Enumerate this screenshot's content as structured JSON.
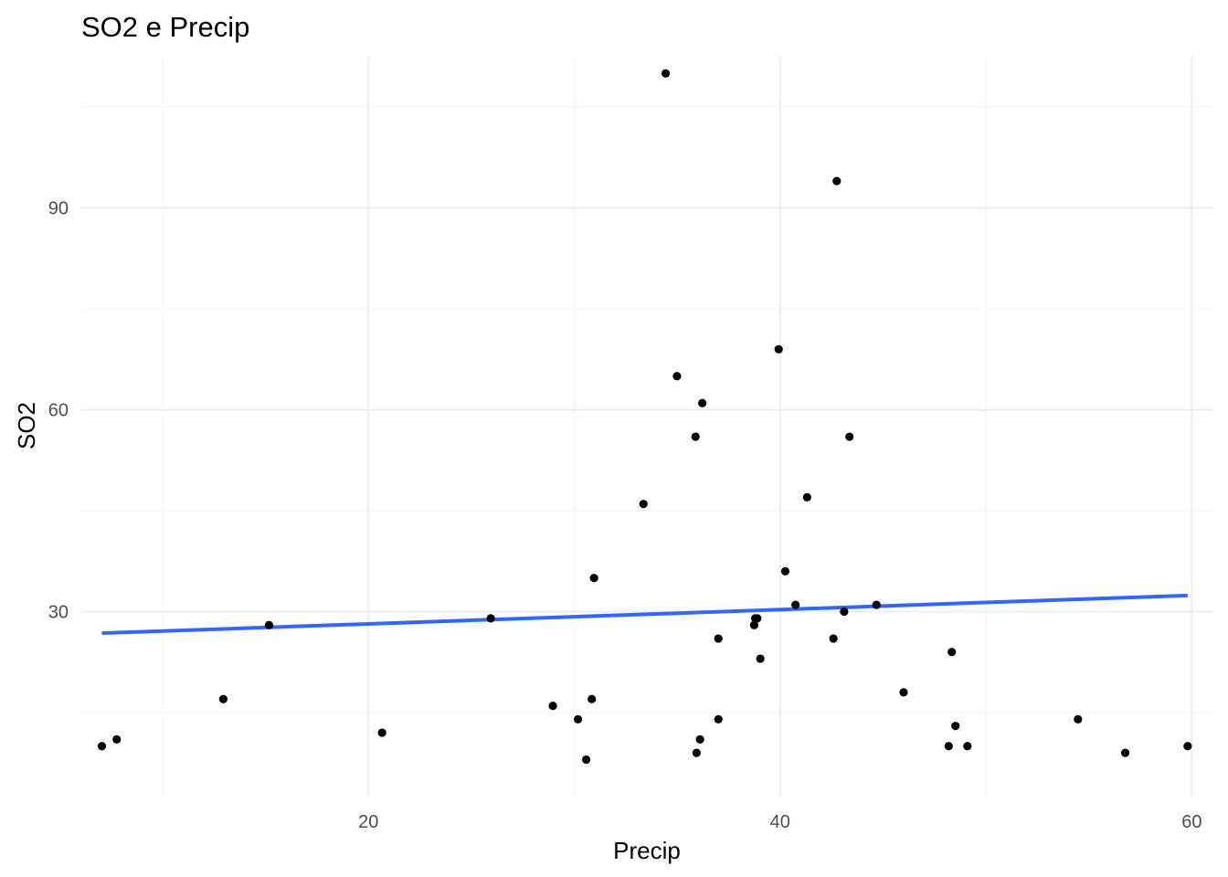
{
  "chart_data": {
    "type": "scatter",
    "title": "SO2 e Precip",
    "xlabel": "Precip",
    "ylabel": "SO2",
    "xlim": [
      6.05,
      61.05
    ],
    "ylim": [
      2.5,
      112.5
    ],
    "x_ticks": [
      20,
      40,
      60
    ],
    "y_ticks": [
      30,
      60,
      90
    ],
    "x_minor_ticks": [
      10,
      30,
      50
    ],
    "y_minor_ticks": [
      15,
      45,
      75,
      105
    ],
    "grid": true,
    "legend": "none",
    "points": [
      {
        "x": 7.05,
        "y": 10
      },
      {
        "x": 7.77,
        "y": 11
      },
      {
        "x": 12.95,
        "y": 17
      },
      {
        "x": 15.17,
        "y": 28
      },
      {
        "x": 20.66,
        "y": 12
      },
      {
        "x": 25.94,
        "y": 29
      },
      {
        "x": 28.96,
        "y": 16
      },
      {
        "x": 30.18,
        "y": 14
      },
      {
        "x": 30.58,
        "y": 8
      },
      {
        "x": 30.85,
        "y": 17
      },
      {
        "x": 30.96,
        "y": 35
      },
      {
        "x": 33.36,
        "y": 46
      },
      {
        "x": 34.44,
        "y": 110
      },
      {
        "x": 34.99,
        "y": 65
      },
      {
        "x": 35.89,
        "y": 56
      },
      {
        "x": 35.94,
        "y": 9
      },
      {
        "x": 36.11,
        "y": 11
      },
      {
        "x": 36.22,
        "y": 61
      },
      {
        "x": 37.0,
        "y": 26
      },
      {
        "x": 37.0,
        "y": 14
      },
      {
        "x": 38.74,
        "y": 28
      },
      {
        "x": 38.79,
        "y": 29
      },
      {
        "x": 38.89,
        "y": 29
      },
      {
        "x": 39.04,
        "y": 23
      },
      {
        "x": 39.93,
        "y": 69
      },
      {
        "x": 40.25,
        "y": 36
      },
      {
        "x": 40.75,
        "y": 31
      },
      {
        "x": 41.31,
        "y": 47
      },
      {
        "x": 42.59,
        "y": 26
      },
      {
        "x": 42.75,
        "y": 94
      },
      {
        "x": 43.11,
        "y": 30
      },
      {
        "x": 43.37,
        "y": 56
      },
      {
        "x": 44.68,
        "y": 31
      },
      {
        "x": 46.0,
        "y": 18
      },
      {
        "x": 48.19,
        "y": 10
      },
      {
        "x": 48.34,
        "y": 24
      },
      {
        "x": 48.52,
        "y": 13
      },
      {
        "x": 49.1,
        "y": 10
      },
      {
        "x": 54.47,
        "y": 14
      },
      {
        "x": 56.77,
        "y": 9
      },
      {
        "x": 59.8,
        "y": 10
      }
    ],
    "fit_line": {
      "x": [
        7.05,
        59.8
      ],
      "y": [
        26.8,
        32.4
      ]
    },
    "colors": {
      "points": "#000000",
      "fit_line": "#3366FF",
      "grid_major": "#EBEBEB",
      "grid_minor": "#F5F5F5",
      "tick_text": "#4D4D4D"
    }
  }
}
